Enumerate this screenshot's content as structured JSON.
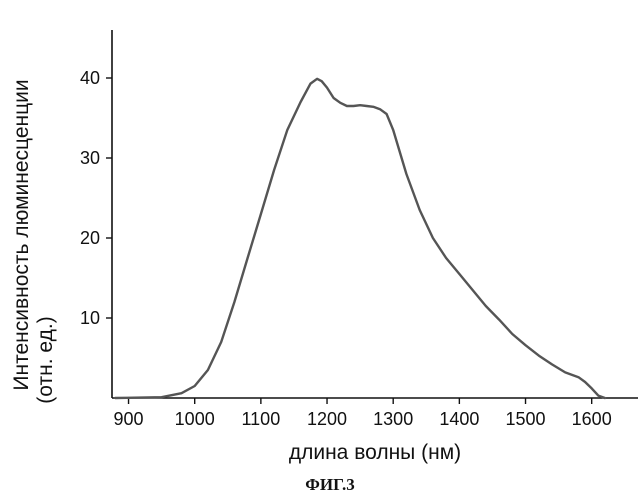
{
  "chart_data": {
    "type": "line",
    "xlabel": "длина волны (нм)",
    "ylabel_line1": "Интенсивность люминесценции",
    "ylabel_line2": "(отн. ед.)",
    "caption": "ФИГ.3",
    "xlim": [
      875,
      1670
    ],
    "ylim": [
      0,
      46
    ],
    "x_ticks": [
      900,
      1000,
      1100,
      1200,
      1300,
      1400,
      1500,
      1600
    ],
    "y_ticks": [
      10,
      20,
      30,
      40
    ],
    "grid": false,
    "series": [
      {
        "color": "#555555",
        "x": [
          880,
          950,
          980,
          1000,
          1020,
          1040,
          1060,
          1080,
          1100,
          1120,
          1140,
          1160,
          1175,
          1185,
          1192,
          1200,
          1210,
          1220,
          1230,
          1240,
          1250,
          1260,
          1270,
          1280,
          1290,
          1300,
          1320,
          1340,
          1360,
          1380,
          1400,
          1420,
          1440,
          1460,
          1480,
          1500,
          1520,
          1540,
          1560,
          1580,
          1590,
          1600,
          1610,
          1620
        ],
        "y": [
          0,
          0.1,
          0.6,
          1.5,
          3.5,
          7,
          12,
          17.5,
          23,
          28.5,
          33.5,
          37,
          39.3,
          39.9,
          39.6,
          38.8,
          37.5,
          36.9,
          36.5,
          36.5,
          36.6,
          36.5,
          36.4,
          36.1,
          35.5,
          33.5,
          28,
          23.5,
          20,
          17.5,
          15.5,
          13.5,
          11.5,
          9.8,
          8,
          6.6,
          5.3,
          4.2,
          3.2,
          2.6,
          2,
          1.2,
          0.3,
          0
        ]
      }
    ]
  }
}
